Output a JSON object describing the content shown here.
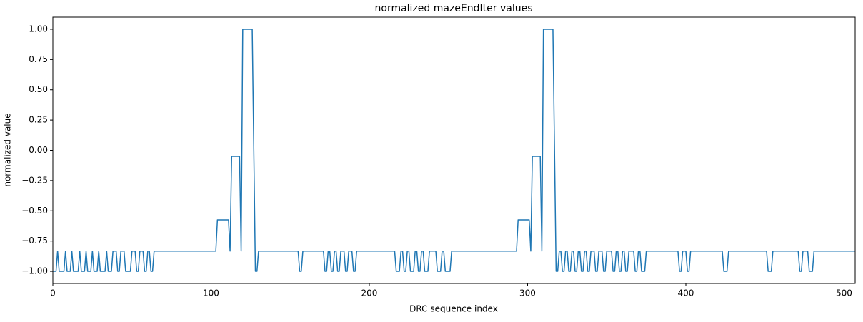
{
  "chart_data": {
    "type": "line",
    "title": "normalized mazeEndIter values",
    "x_label": "DRC sequence index",
    "y_label": "normalized value",
    "xlim": [
      0,
      507
    ],
    "ylim": [
      -1.1,
      1.1
    ],
    "xticks": [
      0,
      100,
      200,
      300,
      400,
      500
    ],
    "yticks": [
      {
        "value": -1,
        "label": "−1.00"
      },
      {
        "value": -0.75,
        "label": "−0.75"
      },
      {
        "value": -0.5,
        "label": "−0.50"
      },
      {
        "value": -0.25,
        "label": "−0.25"
      },
      {
        "value": 0,
        "label": "0.00"
      },
      {
        "value": 0.25,
        "label": "0.25"
      },
      {
        "value": 0.5,
        "label": "0.50"
      },
      {
        "value": 0.75,
        "label": "0.75"
      },
      {
        "value": 1,
        "label": "1.00"
      }
    ],
    "color": "#1f77b4",
    "x": [
      0,
      2,
      3,
      4,
      7,
      8,
      9,
      11,
      12,
      13,
      16,
      17,
      18,
      20,
      21,
      22,
      24,
      25,
      26,
      28,
      29,
      30,
      33,
      34,
      35,
      37,
      38,
      40,
      41,
      42,
      43,
      45,
      46,
      49,
      50,
      52,
      53,
      54,
      55,
      57,
      58,
      59,
      60,
      61,
      62,
      63,
      64,
      103,
      104,
      111,
      112,
      113,
      118,
      119,
      120,
      126,
      128,
      129,
      130,
      155,
      156,
      157,
      158,
      171,
      172,
      173,
      174,
      175,
      176,
      177,
      178,
      179,
      180,
      181,
      182,
      184,
      185,
      186,
      187,
      189,
      190,
      191,
      192,
      216,
      217,
      219,
      220,
      221,
      222,
      223,
      224,
      225,
      226,
      228,
      229,
      230,
      231,
      232,
      233,
      234,
      235,
      237,
      238,
      242,
      243,
      245,
      246,
      247,
      248,
      251,
      252,
      293,
      294,
      301,
      302,
      303,
      308,
      309,
      310,
      316,
      318,
      319,
      320,
      321,
      322,
      323,
      324,
      325,
      326,
      327,
      328,
      329,
      330,
      331,
      332,
      333,
      334,
      335,
      336,
      337,
      338,
      339,
      340,
      342,
      343,
      344,
      345,
      347,
      348,
      349,
      350,
      353,
      354,
      355,
      356,
      357,
      358,
      359,
      360,
      361,
      362,
      363,
      364,
      367,
      368,
      369,
      370,
      371,
      372,
      374,
      375,
      395,
      396,
      397,
      398,
      400,
      401,
      402,
      403,
      423,
      424,
      426,
      427,
      451,
      452,
      454,
      455,
      471,
      472,
      473,
      474,
      477,
      478,
      480,
      481,
      507
    ],
    "values": [
      -1,
      -1,
      -0.833,
      -1,
      -1,
      -0.833,
      -1,
      -1,
      -0.833,
      -1,
      -1,
      -0.833,
      -1,
      -1,
      -0.833,
      -1,
      -1,
      -0.833,
      -1,
      -1,
      -0.833,
      -1,
      -1,
      -0.833,
      -1,
      -1,
      -0.833,
      -0.833,
      -1,
      -1,
      -0.833,
      -0.833,
      -1,
      -1,
      -0.833,
      -0.833,
      -1,
      -1,
      -0.833,
      -0.833,
      -1,
      -1,
      -0.833,
      -0.833,
      -1,
      -1,
      -0.833,
      -0.833,
      -0.575,
      -0.575,
      -0.833,
      -0.05,
      -0.05,
      -0.833,
      1,
      1,
      -1,
      -1,
      -0.833,
      -0.833,
      -1,
      -1,
      -0.833,
      -0.833,
      -1,
      -1,
      -0.833,
      -0.833,
      -1,
      -1,
      -0.833,
      -0.833,
      -1,
      -1,
      -0.833,
      -0.833,
      -1,
      -1,
      -0.833,
      -0.833,
      -1,
      -1,
      -0.833,
      -0.833,
      -1,
      -1,
      -0.833,
      -0.833,
      -1,
      -1,
      -0.833,
      -0.833,
      -1,
      -1,
      -0.833,
      -0.833,
      -1,
      -1,
      -0.833,
      -0.833,
      -1,
      -1,
      -0.833,
      -0.833,
      -1,
      -1,
      -0.833,
      -0.833,
      -1,
      -1,
      -0.833,
      -0.833,
      -0.575,
      -0.575,
      -0.833,
      -0.05,
      -0.05,
      -0.833,
      1,
      1,
      -1,
      -1,
      -0.833,
      -0.833,
      -1,
      -1,
      -0.833,
      -0.833,
      -1,
      -1,
      -0.833,
      -0.833,
      -1,
      -1,
      -0.833,
      -0.833,
      -1,
      -1,
      -0.833,
      -0.833,
      -1,
      -1,
      -0.833,
      -0.833,
      -1,
      -1,
      -0.833,
      -0.833,
      -1,
      -1,
      -0.833,
      -0.833,
      -1,
      -1,
      -0.833,
      -0.833,
      -1,
      -1,
      -0.833,
      -0.833,
      -1,
      -1,
      -0.833,
      -0.833,
      -1,
      -1,
      -0.833,
      -0.833,
      -1,
      -1,
      -0.833,
      -0.833,
      -1,
      -1,
      -0.833,
      -0.833,
      -1,
      -1,
      -0.833,
      -0.833,
      -1,
      -1,
      -0.833,
      -0.833,
      -1,
      -1,
      -0.833,
      -0.833,
      -1,
      -1,
      -0.833,
      -0.833,
      -1,
      -1,
      -0.833,
      -0.833
    ]
  }
}
